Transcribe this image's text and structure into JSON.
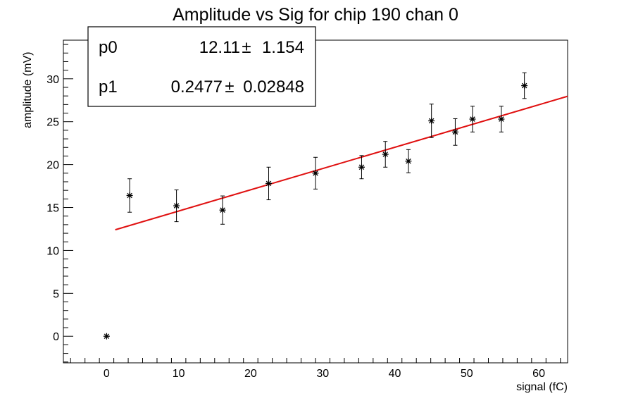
{
  "chart_data": {
    "type": "scatter",
    "title": "Amplitude vs Sig for chip 190 chan 0",
    "xlabel": "signal (fC)",
    "ylabel": "amplitude (mV)",
    "xlim": [
      -6,
      64
    ],
    "ylim": [
      -3.1,
      34.5
    ],
    "x_ticks": [
      "0",
      "10",
      "20",
      "30",
      "40",
      "50",
      "60"
    ],
    "y_ticks": [
      "0",
      "5",
      "10",
      "15",
      "20",
      "25",
      "30"
    ],
    "series": [
      {
        "marker": "star",
        "color": "#000000",
        "points": [
          {
            "x": 0.0,
            "y": 0.0,
            "err": 0.0
          },
          {
            "x": 3.2,
            "y": 16.4,
            "err": 1.95
          },
          {
            "x": 9.7,
            "y": 15.2,
            "err": 1.85
          },
          {
            "x": 16.1,
            "y": 14.7,
            "err": 1.65
          },
          {
            "x": 22.5,
            "y": 17.8,
            "err": 1.9
          },
          {
            "x": 29.0,
            "y": 19.0,
            "err": 1.85
          },
          {
            "x": 35.4,
            "y": 19.7,
            "err": 1.35
          },
          {
            "x": 38.7,
            "y": 21.2,
            "err": 1.5
          },
          {
            "x": 41.9,
            "y": 20.4,
            "err": 1.35
          },
          {
            "x": 45.1,
            "y": 25.1,
            "err": 1.95
          },
          {
            "x": 48.4,
            "y": 23.8,
            "err": 1.55
          },
          {
            "x": 50.8,
            "y": 25.3,
            "err": 1.5
          },
          {
            "x": 54.8,
            "y": 25.3,
            "err": 1.5
          },
          {
            "x": 58.0,
            "y": 29.2,
            "err": 1.5
          }
        ]
      }
    ],
    "fit": {
      "type": "line",
      "color": "#e01010",
      "x_range": [
        1.2,
        64
      ],
      "p0": 12.11,
      "p1": 0.2477
    },
    "stats_box": {
      "rows": [
        {
          "name": "p0",
          "value": "12.11",
          "pm": "±",
          "error": "1.154"
        },
        {
          "name": "p1",
          "value": "0.2477",
          "pm": "±",
          "error": "0.02848"
        }
      ]
    },
    "grid": false,
    "legend": "top-left"
  }
}
